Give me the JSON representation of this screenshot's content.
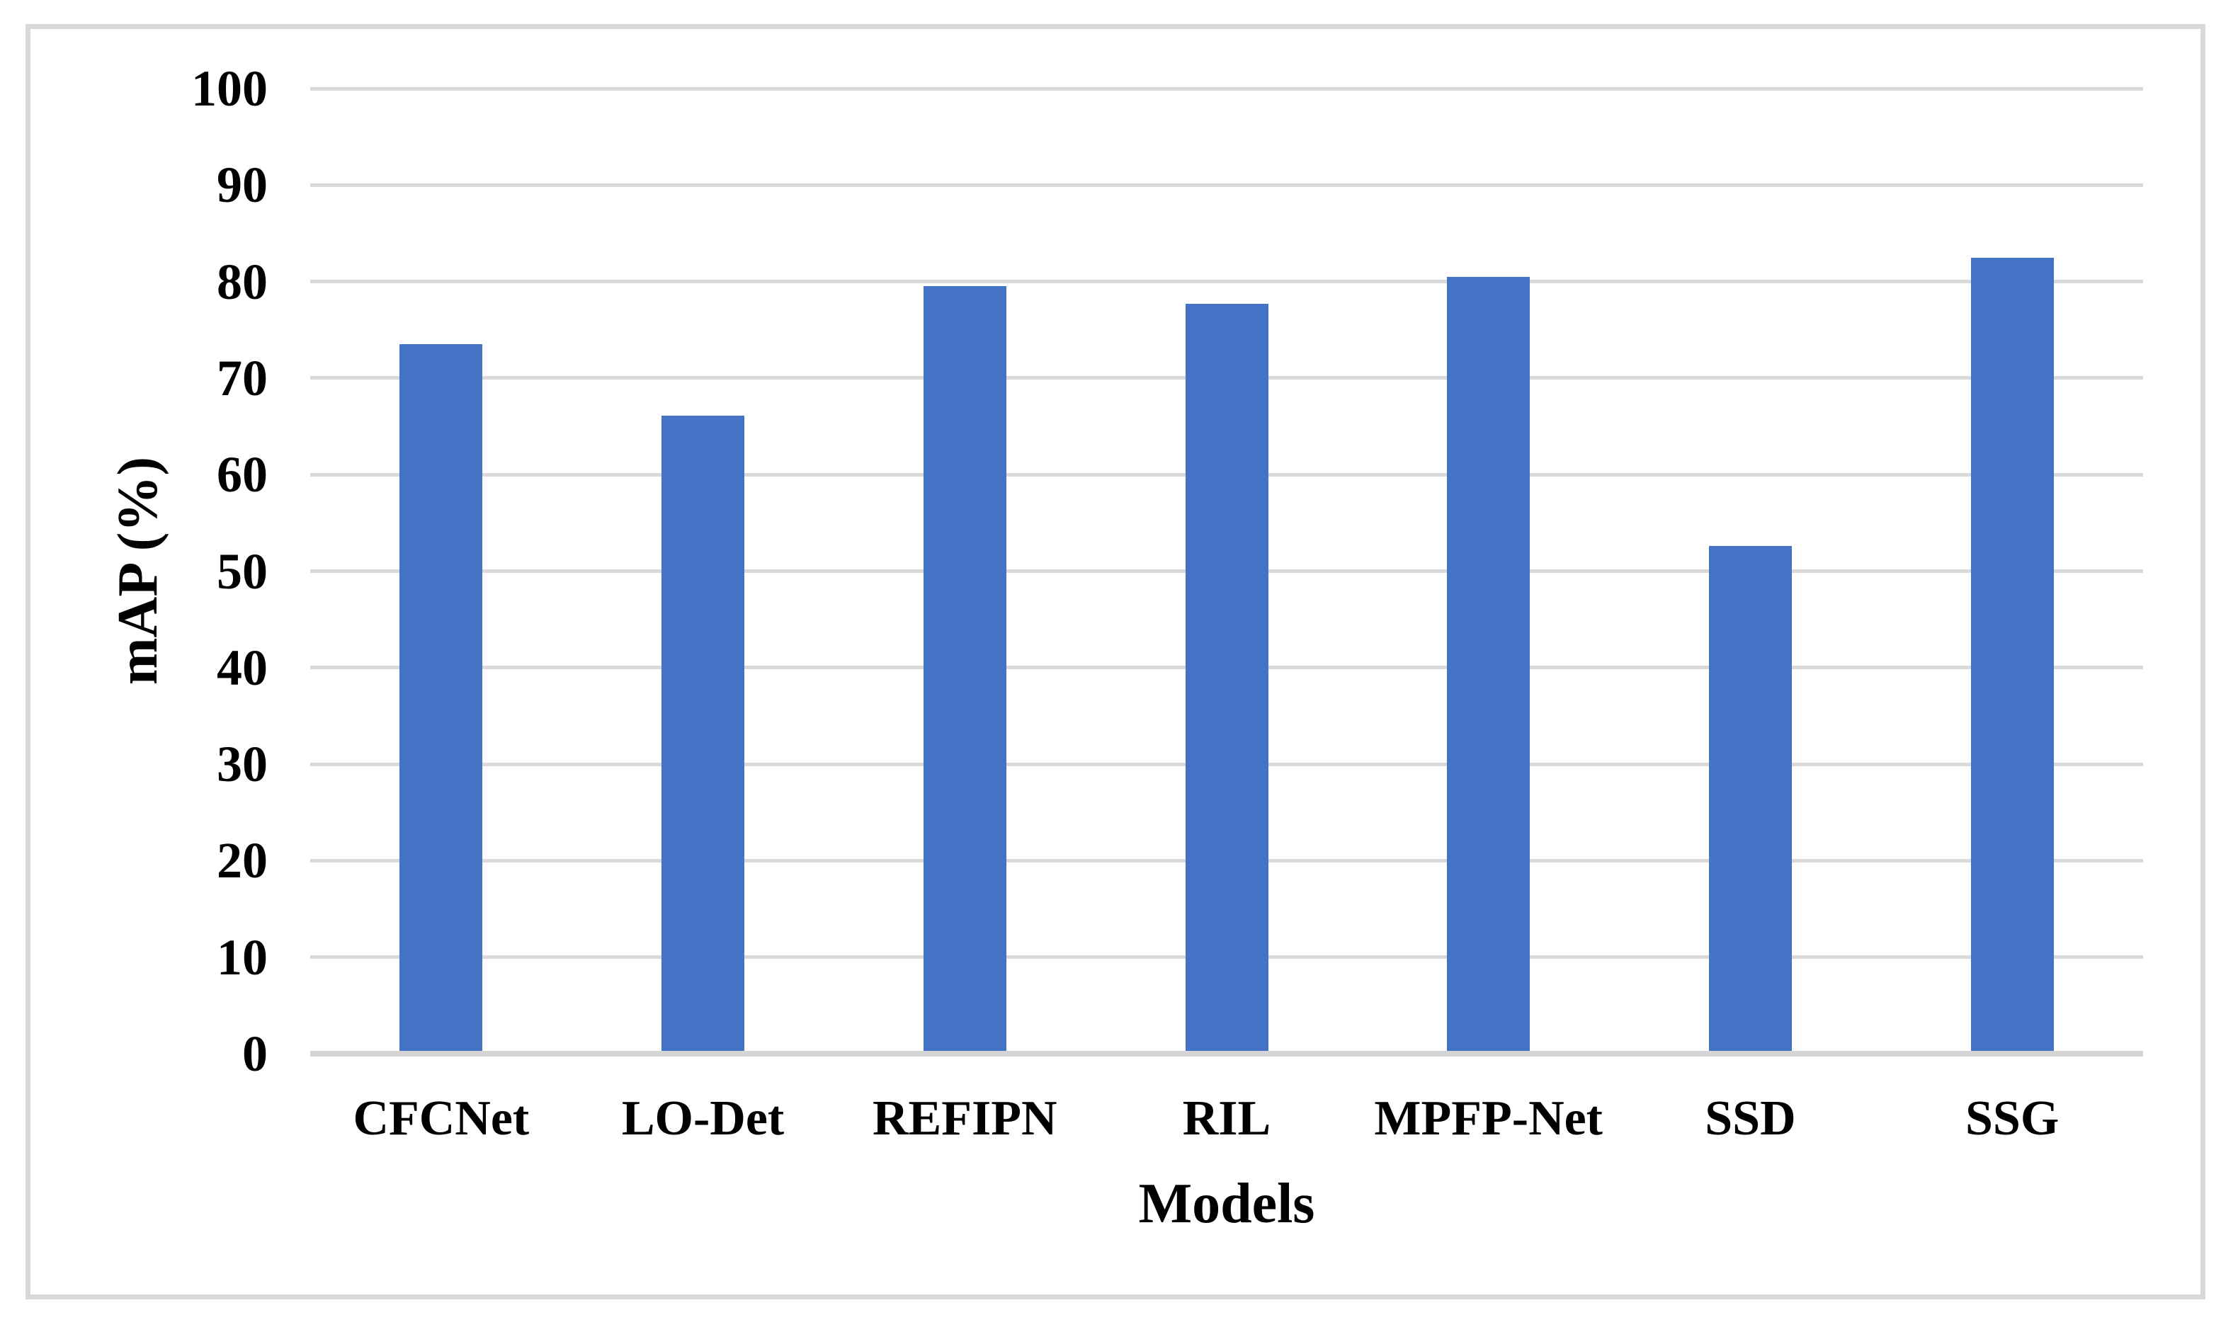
{
  "figure": {
    "background_color": "#ffffff",
    "border_color": "#d9d9d9"
  },
  "chart_data": {
    "type": "bar",
    "title": "",
    "xlabel": "Models",
    "ylabel": "mAP (%)",
    "categories": [
      "CFCNet",
      "LO-Det",
      "REFIPN",
      "RIL",
      "MPFP-Net",
      "SSD",
      "SSG"
    ],
    "values": [
      73.5,
      66.1,
      79.5,
      77.7,
      80.5,
      52.6,
      82.5
    ],
    "series": [
      {
        "name": "mAP",
        "values": [
          73.5,
          66.1,
          79.5,
          77.7,
          80.5,
          52.6,
          82.5
        ]
      }
    ],
    "ylim": [
      0,
      100
    ],
    "ytick_step": 10,
    "ytick_labels": [
      "0",
      "10",
      "20",
      "30",
      "40",
      "50",
      "60",
      "70",
      "80",
      "90",
      "100"
    ],
    "grid": true,
    "legend": "none",
    "bar_color": "#4472c4",
    "gridline_color": "#d9d9d9",
    "axis_line_color": "#d5d5d5"
  }
}
